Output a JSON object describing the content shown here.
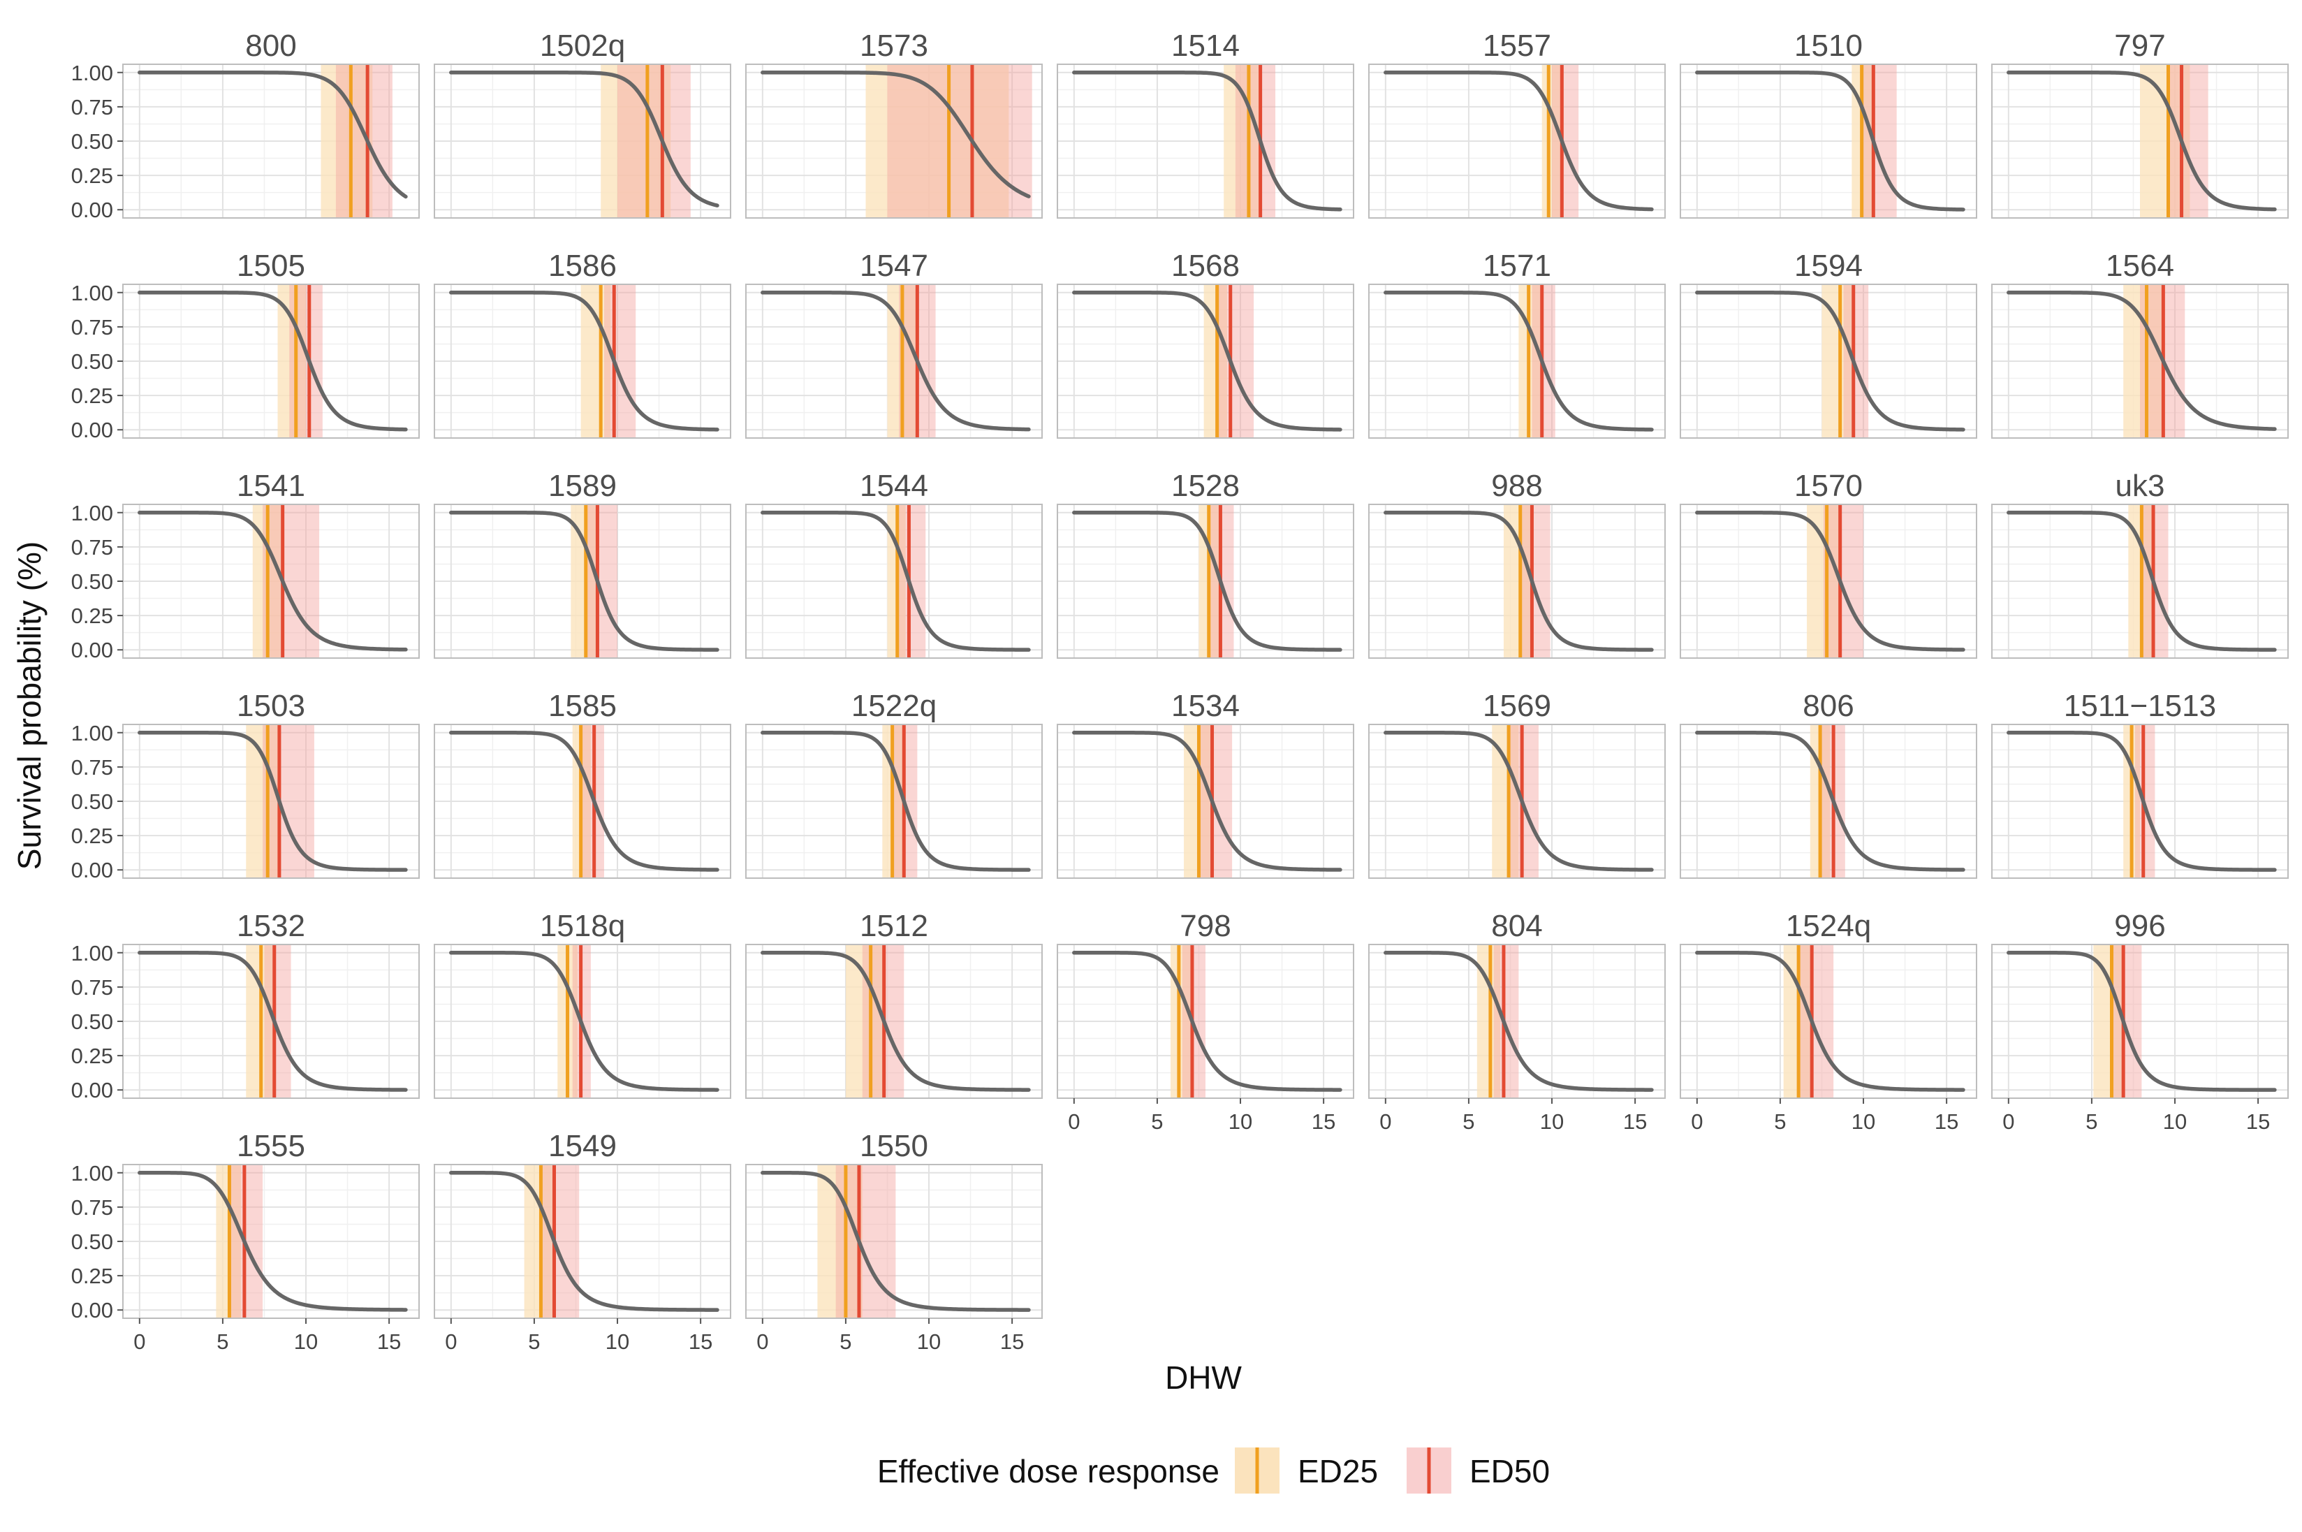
{
  "chart_data": {
    "type": "line",
    "subtype": "faceted dose-response survival curves",
    "title": "",
    "xlabel": "DHW",
    "ylabel": "Survival probability (%)",
    "xlim": [
      -1,
      16.8
    ],
    "ylim": [
      -0.06,
      1.06
    ],
    "x_ticks": [
      0,
      5,
      10,
      15
    ],
    "y_ticks": [
      0,
      0.25,
      0.5,
      0.75,
      1
    ],
    "y_tick_labels": [
      "0.00",
      "0.25",
      "0.50",
      "0.75",
      "1.00"
    ],
    "grid": true,
    "legend": {
      "title": "Effective dose response",
      "placement": "bottom",
      "entries": [
        {
          "name": "ED25",
          "color": "#F0A020",
          "band_color": "#FBE3BD"
        },
        {
          "name": "ED50",
          "color": "#E34A33",
          "band_color": "#F9CFCF"
        }
      ]
    },
    "curve_color": "#666666",
    "facet_columns": 7,
    "facets": [
      {
        "label": "800",
        "ed25": 12.7,
        "ed25_ci": [
          10.9,
          14.0
        ],
        "ed50": 13.7,
        "ed50_ci": [
          11.8,
          15.2
        ]
      },
      {
        "label": "1502q",
        "ed25": 11.8,
        "ed25_ci": [
          9.0,
          13.2
        ],
        "ed50": 12.7,
        "ed50_ci": [
          10.0,
          14.4
        ]
      },
      {
        "label": "1573",
        "ed25": 11.2,
        "ed25_ci": [
          6.2,
          14.8
        ],
        "ed50": 12.6,
        "ed50_ci": [
          7.5,
          16.2
        ]
      },
      {
        "label": "1514",
        "ed25": 10.5,
        "ed25_ci": [
          9.0,
          11.3
        ],
        "ed50": 11.2,
        "ed50_ci": [
          9.7,
          12.1
        ]
      },
      {
        "label": "1557",
        "ed25": 9.8,
        "ed25_ci": [
          9.4,
          10.7
        ],
        "ed50": 10.6,
        "ed50_ci": [
          10.0,
          11.6
        ]
      },
      {
        "label": "1510",
        "ed25": 9.9,
        "ed25_ci": [
          9.3,
          10.7
        ],
        "ed50": 10.6,
        "ed50_ci": [
          10.0,
          12.0
        ]
      },
      {
        "label": "797",
        "ed25": 9.6,
        "ed25_ci": [
          7.9,
          10.9
        ],
        "ed50": 10.4,
        "ed50_ci": [
          9.5,
          12.0
        ]
      },
      {
        "label": "1505",
        "ed25": 9.4,
        "ed25_ci": [
          8.3,
          10.0
        ],
        "ed50": 10.2,
        "ed50_ci": [
          9.0,
          11.0
        ]
      },
      {
        "label": "1586",
        "ed25": 9.0,
        "ed25_ci": [
          7.8,
          9.6
        ],
        "ed50": 9.8,
        "ed50_ci": [
          9.2,
          11.1
        ]
      },
      {
        "label": "1547",
        "ed25": 8.4,
        "ed25_ci": [
          7.5,
          9.2
        ],
        "ed50": 9.3,
        "ed50_ci": [
          8.2,
          10.4
        ]
      },
      {
        "label": "1568",
        "ed25": 8.6,
        "ed25_ci": [
          7.8,
          9.2
        ],
        "ed50": 9.4,
        "ed50_ci": [
          8.5,
          10.8
        ]
      },
      {
        "label": "1571",
        "ed25": 8.6,
        "ed25_ci": [
          8.0,
          9.3
        ],
        "ed50": 9.4,
        "ed50_ci": [
          8.8,
          10.2
        ]
      },
      {
        "label": "1594",
        "ed25": 8.6,
        "ed25_ci": [
          7.5,
          9.3
        ],
        "ed50": 9.4,
        "ed50_ci": [
          8.8,
          10.3
        ]
      },
      {
        "label": "1564",
        "ed25": 8.3,
        "ed25_ci": [
          6.9,
          9.4
        ],
        "ed50": 9.3,
        "ed50_ci": [
          7.9,
          10.6
        ]
      },
      {
        "label": "1541",
        "ed25": 7.7,
        "ed25_ci": [
          6.8,
          8.5
        ],
        "ed50": 8.6,
        "ed50_ci": [
          7.4,
          10.8
        ]
      },
      {
        "label": "1589",
        "ed25": 8.1,
        "ed25_ci": [
          7.2,
          8.8
        ],
        "ed50": 8.8,
        "ed50_ci": [
          8.1,
          10.0
        ]
      },
      {
        "label": "1544",
        "ed25": 8.1,
        "ed25_ci": [
          7.5,
          8.6
        ],
        "ed50": 8.8,
        "ed50_ci": [
          8.2,
          9.8
        ]
      },
      {
        "label": "1528",
        "ed25": 8.1,
        "ed25_ci": [
          7.5,
          8.9
        ],
        "ed50": 8.8,
        "ed50_ci": [
          8.2,
          9.6
        ]
      },
      {
        "label": "988",
        "ed25": 8.1,
        "ed25_ci": [
          7.1,
          8.8
        ],
        "ed50": 8.8,
        "ed50_ci": [
          8.2,
          9.9
        ]
      },
      {
        "label": "1570",
        "ed25": 7.8,
        "ed25_ci": [
          6.6,
          8.6
        ],
        "ed50": 8.6,
        "ed50_ci": [
          7.6,
          10.0
        ]
      },
      {
        "label": "uk3",
        "ed25": 8.0,
        "ed25_ci": [
          7.2,
          8.6
        ],
        "ed50": 8.7,
        "ed50_ci": [
          7.9,
          9.6
        ]
      },
      {
        "label": "1503",
        "ed25": 7.7,
        "ed25_ci": [
          6.4,
          8.3
        ],
        "ed50": 8.4,
        "ed50_ci": [
          7.4,
          10.5
        ]
      },
      {
        "label": "1585",
        "ed25": 7.8,
        "ed25_ci": [
          7.3,
          8.4
        ],
        "ed50": 8.6,
        "ed50_ci": [
          7.9,
          9.2
        ]
      },
      {
        "label": "1522q",
        "ed25": 7.8,
        "ed25_ci": [
          7.2,
          8.4
        ],
        "ed50": 8.5,
        "ed50_ci": [
          7.8,
          9.3
        ]
      },
      {
        "label": "1534",
        "ed25": 7.5,
        "ed25_ci": [
          6.6,
          8.2
        ],
        "ed50": 8.3,
        "ed50_ci": [
          7.6,
          9.5
        ]
      },
      {
        "label": "1569",
        "ed25": 7.4,
        "ed25_ci": [
          6.4,
          8.0
        ],
        "ed50": 8.2,
        "ed50_ci": [
          7.3,
          9.2
        ]
      },
      {
        "label": "806",
        "ed25": 7.4,
        "ed25_ci": [
          6.8,
          8.0
        ],
        "ed50": 8.2,
        "ed50_ci": [
          7.4,
          8.9
        ]
      },
      {
        "label": "1511−1513",
        "ed25": 7.4,
        "ed25_ci": [
          6.9,
          7.9
        ],
        "ed50": 8.1,
        "ed50_ci": [
          7.6,
          8.8
        ]
      },
      {
        "label": "1532",
        "ed25": 7.3,
        "ed25_ci": [
          6.4,
          8.0
        ],
        "ed50": 8.1,
        "ed50_ci": [
          7.5,
          9.1
        ]
      },
      {
        "label": "1518q",
        "ed25": 7.0,
        "ed25_ci": [
          6.4,
          7.6
        ],
        "ed50": 7.8,
        "ed50_ci": [
          7.3,
          8.4
        ]
      },
      {
        "label": "1512",
        "ed25": 6.5,
        "ed25_ci": [
          5.0,
          7.4
        ],
        "ed50": 7.3,
        "ed50_ci": [
          6.0,
          8.5
        ]
      },
      {
        "label": "798",
        "ed25": 6.3,
        "ed25_ci": [
          5.8,
          7.0
        ],
        "ed50": 7.1,
        "ed50_ci": [
          6.5,
          7.9
        ]
      },
      {
        "label": "804",
        "ed25": 6.3,
        "ed25_ci": [
          5.5,
          6.9
        ],
        "ed50": 7.1,
        "ed50_ci": [
          6.5,
          8.0
        ]
      },
      {
        "label": "1524q",
        "ed25": 6.1,
        "ed25_ci": [
          5.2,
          6.8
        ],
        "ed50": 6.9,
        "ed50_ci": [
          6.0,
          8.2
        ]
      },
      {
        "label": "996",
        "ed25": 6.2,
        "ed25_ci": [
          5.1,
          6.8
        ],
        "ed50": 6.9,
        "ed50_ci": [
          6.3,
          8.0
        ]
      },
      {
        "label": "1555",
        "ed25": 5.4,
        "ed25_ci": [
          4.6,
          6.1
        ],
        "ed50": 6.3,
        "ed50_ci": [
          5.5,
          7.4
        ]
      },
      {
        "label": "1549",
        "ed25": 5.4,
        "ed25_ci": [
          4.4,
          6.2
        ],
        "ed50": 6.2,
        "ed50_ci": [
          5.5,
          7.7
        ]
      },
      {
        "label": "1550",
        "ed25": 5.0,
        "ed25_ci": [
          3.3,
          6.0
        ],
        "ed50": 5.8,
        "ed50_ci": [
          4.4,
          8.0
        ]
      }
    ]
  }
}
